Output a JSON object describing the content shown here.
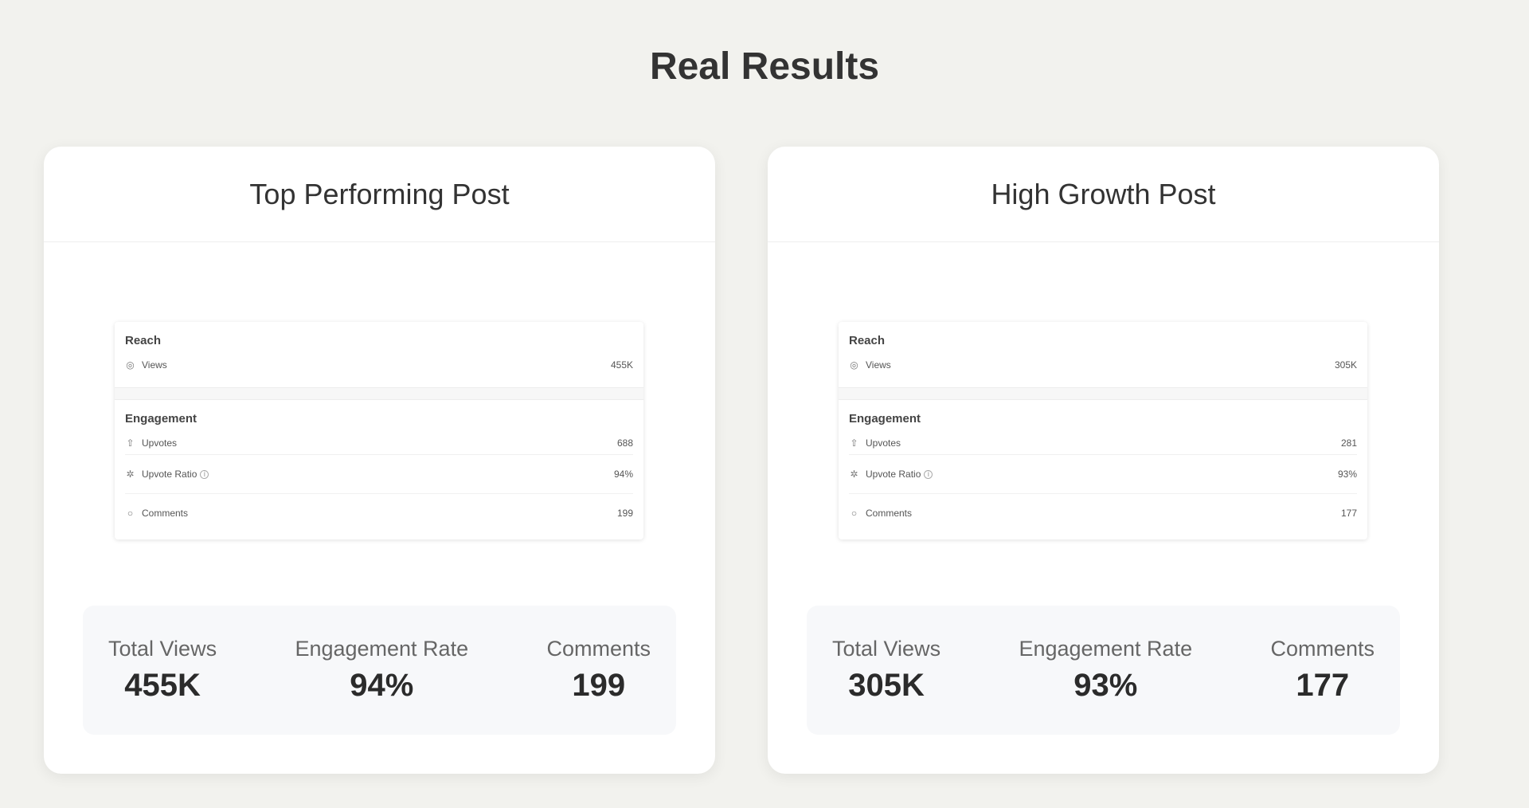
{
  "page": {
    "title": "Real Results"
  },
  "cards": [
    {
      "title": "Top Performing Post",
      "reach": {
        "heading": "Reach",
        "views_label": "Views",
        "views_value": "455K"
      },
      "engagement": {
        "heading": "Engagement",
        "upvotes_label": "Upvotes",
        "upvotes_value": "688",
        "ratio_label": "Upvote Ratio",
        "ratio_value": "94%",
        "comments_label": "Comments",
        "comments_value": "199"
      },
      "stats": [
        {
          "label": "Total Views",
          "value": "455K"
        },
        {
          "label": "Engagement Rate",
          "value": "94%"
        },
        {
          "label": "Comments",
          "value": "199"
        }
      ]
    },
    {
      "title": "High Growth Post",
      "reach": {
        "heading": "Reach",
        "views_label": "Views",
        "views_value": "305K"
      },
      "engagement": {
        "heading": "Engagement",
        "upvotes_label": "Upvotes",
        "upvotes_value": "281",
        "ratio_label": "Upvote Ratio",
        "ratio_value": "93%",
        "comments_label": "Comments",
        "comments_value": "177"
      },
      "stats": [
        {
          "label": "Total Views",
          "value": "305K"
        },
        {
          "label": "Engagement Rate",
          "value": "93%"
        },
        {
          "label": "Comments",
          "value": "177"
        }
      ]
    }
  ]
}
